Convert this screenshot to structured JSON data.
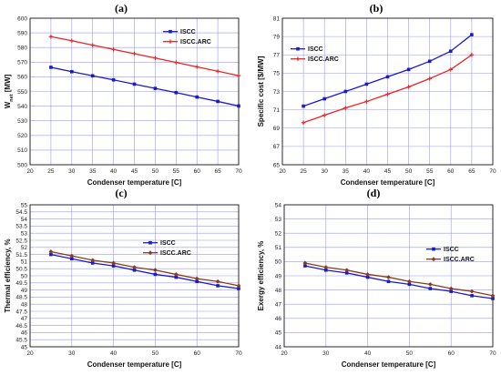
{
  "chart_data": [
    {
      "type": "line",
      "panel_label": "(a)",
      "xlabel": "Condenser temperature  [C]",
      "ylabel_main": "W",
      "ylabel_sub": "net",
      "ylabel_unit": " [MW]",
      "xlim": [
        20,
        70
      ],
      "ylim": [
        500,
        600
      ],
      "xticks": [
        20,
        25,
        30,
        35,
        40,
        45,
        50,
        55,
        60,
        65,
        70
      ],
      "yticks": [
        500,
        510,
        520,
        530,
        540,
        550,
        560,
        570,
        580,
        590,
        600
      ],
      "x": [
        25,
        30,
        35,
        40,
        45,
        50,
        55,
        60,
        65,
        70
      ],
      "series": [
        {
          "name": "ISCC",
          "color": "#1a1acc",
          "marker": "square",
          "values": [
            566.5,
            563.5,
            560.7,
            557.9,
            555.0,
            552.1,
            549.2,
            546.2,
            543.2,
            540.1
          ]
        },
        {
          "name": "ISCC.ARC",
          "color": "#ee2222",
          "marker": "plus",
          "values": [
            587.4,
            584.6,
            581.6,
            578.7,
            575.8,
            572.8,
            569.8,
            566.8,
            563.8,
            560.8
          ]
        }
      ],
      "legend": "top-right",
      "grid": true
    },
    {
      "type": "line",
      "panel_label": "(b)",
      "xlabel": "Condenser temperature  [C]",
      "ylabel_main": "Specific cost [$/MW]",
      "ylabel_sub": "",
      "ylabel_unit": "",
      "xlim": [
        20,
        70
      ],
      "ylim": [
        65,
        81
      ],
      "xticks": [
        20,
        25,
        30,
        35,
        40,
        45,
        50,
        55,
        60,
        65,
        70
      ],
      "yticks": [
        65,
        67,
        69,
        71,
        73,
        75,
        77,
        79,
        81
      ],
      "x": [
        25,
        30,
        35,
        40,
        45,
        50,
        55,
        60,
        65
      ],
      "series": [
        {
          "name": "ISCC",
          "color": "#1a1acc",
          "marker": "square",
          "values": [
            71.4,
            72.2,
            73.0,
            73.8,
            74.6,
            75.4,
            76.3,
            77.4,
            79.2
          ]
        },
        {
          "name": "ISCC.ARC",
          "color": "#ee2222",
          "marker": "plus",
          "values": [
            69.6,
            70.4,
            71.2,
            71.9,
            72.7,
            73.5,
            74.4,
            75.4,
            77.0
          ]
        }
      ],
      "legend": "top-left",
      "grid": true
    },
    {
      "type": "line",
      "panel_label": "(c)",
      "xlabel": "Condenser temperature  [C]",
      "ylabel_main": "Thermal efficiency, %",
      "ylabel_sub": "",
      "ylabel_unit": "",
      "xlim": [
        20,
        70
      ],
      "ylim": [
        45,
        55
      ],
      "xticks": [
        20,
        30,
        40,
        50,
        60,
        70
      ],
      "yticks": [
        45,
        45.5,
        46,
        46.5,
        47,
        47.5,
        48,
        48.5,
        49,
        49.5,
        50,
        50.5,
        51,
        51.5,
        52,
        52.5,
        53,
        53.5,
        54,
        54.5,
        55
      ],
      "x": [
        25,
        30,
        35,
        40,
        45,
        50,
        55,
        60,
        65,
        70
      ],
      "series": [
        {
          "name": "ISCC",
          "color": "#1a1acc",
          "marker": "square",
          "values": [
            51.5,
            51.2,
            50.9,
            50.7,
            50.4,
            50.1,
            49.9,
            49.6,
            49.3,
            49.1
          ]
        },
        {
          "name": "ISCC.ARC",
          "color": "#8b3a1a",
          "marker": "diamond",
          "values": [
            51.7,
            51.4,
            51.1,
            50.9,
            50.6,
            50.4,
            50.1,
            49.8,
            49.6,
            49.3
          ]
        }
      ],
      "legend": "top-right",
      "grid": true
    },
    {
      "type": "line",
      "panel_label": "(d)",
      "xlabel": "Condenser temperature  [C]",
      "ylabel_main": "Exergy efficiency, %",
      "ylabel_sub": "",
      "ylabel_unit": "",
      "xlim": [
        20,
        70
      ],
      "ylim": [
        44,
        54
      ],
      "xticks": [
        20,
        30,
        40,
        50,
        60,
        70
      ],
      "yticks": [
        44,
        45,
        46,
        47,
        48,
        49,
        50,
        51,
        52,
        53,
        54
      ],
      "x": [
        25,
        30,
        35,
        40,
        45,
        50,
        55,
        60,
        65,
        70
      ],
      "series": [
        {
          "name": "ISCC",
          "color": "#1a1acc",
          "marker": "square",
          "values": [
            49.7,
            49.4,
            49.2,
            48.9,
            48.6,
            48.4,
            48.1,
            47.9,
            47.6,
            47.4
          ]
        },
        {
          "name": "ISCC.ARC",
          "color": "#8b3a1a",
          "marker": "diamond",
          "values": [
            49.9,
            49.6,
            49.4,
            49.1,
            48.9,
            48.6,
            48.4,
            48.1,
            47.9,
            47.6
          ]
        }
      ],
      "legend": "top-right",
      "grid": true
    }
  ]
}
